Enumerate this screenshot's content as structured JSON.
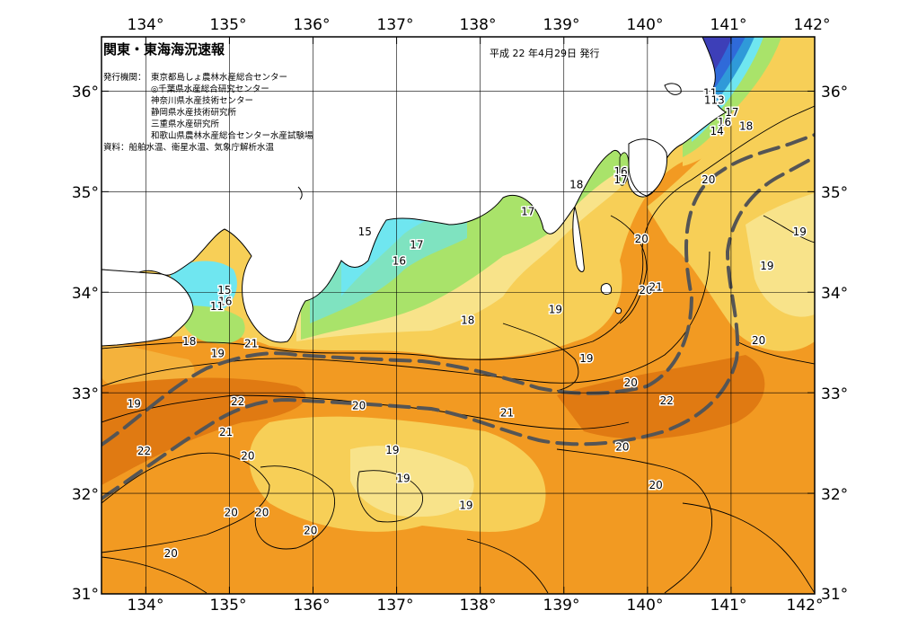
{
  "title": "関東・東海海況速報",
  "issue_date": "平成 22 年4月29日 発行",
  "organizations_label": "発行機関：",
  "organizations": [
    "東京都島しょ農林水産総合センター",
    "◎千葉県水産総合研究センター",
    "神奈川県水産技術センター",
    "静岡県水産技術研究所",
    "三重県水産研究所",
    "和歌山県農林水産総合センター水産試験場"
  ],
  "source_note": "資料：船舶水温、衛星水温、気象庁解析水温",
  "lon_ticks": [
    "134°",
    "135°",
    "136°",
    "137°",
    "138°",
    "139°",
    "140°",
    "141°",
    "142°"
  ],
  "lat_ticks": [
    "36°",
    "35°",
    "34°",
    "33°",
    "32°",
    "31°"
  ],
  "temperature_labels": [
    {
      "text": "11",
      "lon": 140.75,
      "lat": 35.98
    },
    {
      "text": "113",
      "lon": 140.8,
      "lat": 35.91
    },
    {
      "text": "17",
      "lon": 141.01,
      "lat": 35.79
    },
    {
      "text": "16",
      "lon": 140.92,
      "lat": 35.69
    },
    {
      "text": "14",
      "lon": 140.83,
      "lat": 35.6
    },
    {
      "text": "18",
      "lon": 141.18,
      "lat": 35.65
    },
    {
      "text": "16",
      "lon": 139.68,
      "lat": 35.2
    },
    {
      "text": "17",
      "lon": 139.68,
      "lat": 35.12
    },
    {
      "text": "18",
      "lon": 139.15,
      "lat": 35.07
    },
    {
      "text": "20",
      "lon": 140.73,
      "lat": 35.12
    },
    {
      "text": "17",
      "lon": 138.57,
      "lat": 34.8
    },
    {
      "text": "15",
      "lon": 136.62,
      "lat": 34.6
    },
    {
      "text": "17",
      "lon": 137.24,
      "lat": 34.47
    },
    {
      "text": "16",
      "lon": 137.03,
      "lat": 34.31
    },
    {
      "text": "20",
      "lon": 139.93,
      "lat": 34.53
    },
    {
      "text": "19",
      "lon": 141.82,
      "lat": 34.6
    },
    {
      "text": "19",
      "lon": 141.43,
      "lat": 34.26
    },
    {
      "text": "15",
      "lon": 134.94,
      "lat": 34.02
    },
    {
      "text": "16",
      "lon": 134.95,
      "lat": 33.91
    },
    {
      "text": "11",
      "lon": 134.85,
      "lat": 33.86
    },
    {
      "text": "20",
      "lon": 139.98,
      "lat": 34.02
    },
    {
      "text": "21",
      "lon": 140.1,
      "lat": 34.05
    },
    {
      "text": "19",
      "lon": 138.9,
      "lat": 33.83
    },
    {
      "text": "18",
      "lon": 137.85,
      "lat": 33.72
    },
    {
      "text": "20",
      "lon": 141.33,
      "lat": 33.52
    },
    {
      "text": "18",
      "lon": 134.52,
      "lat": 33.51
    },
    {
      "text": "21",
      "lon": 135.26,
      "lat": 33.49
    },
    {
      "text": "19",
      "lon": 134.86,
      "lat": 33.39
    },
    {
      "text": "19",
      "lon": 139.27,
      "lat": 33.34
    },
    {
      "text": "20",
      "lon": 139.8,
      "lat": 33.1
    },
    {
      "text": "19",
      "lon": 133.86,
      "lat": 32.89
    },
    {
      "text": "22",
      "lon": 135.1,
      "lat": 32.91
    },
    {
      "text": "20",
      "lon": 136.55,
      "lat": 32.87
    },
    {
      "text": "21",
      "lon": 138.32,
      "lat": 32.8
    },
    {
      "text": "22",
      "lon": 140.23,
      "lat": 32.92
    },
    {
      "text": "21",
      "lon": 134.96,
      "lat": 32.61
    },
    {
      "text": "22",
      "lon": 133.98,
      "lat": 32.42
    },
    {
      "text": "20",
      "lon": 135.22,
      "lat": 32.37
    },
    {
      "text": "19",
      "lon": 136.95,
      "lat": 32.43
    },
    {
      "text": "20",
      "lon": 139.7,
      "lat": 32.46
    },
    {
      "text": "19",
      "lon": 137.08,
      "lat": 32.15
    },
    {
      "text": "20",
      "lon": 140.1,
      "lat": 32.08
    },
    {
      "text": "19",
      "lon": 137.83,
      "lat": 31.88
    },
    {
      "text": "20",
      "lon": 135.02,
      "lat": 31.81
    },
    {
      "text": "20",
      "lon": 135.39,
      "lat": 31.81
    },
    {
      "text": "20",
      "lon": 135.97,
      "lat": 31.63
    },
    {
      "text": "20",
      "lon": 134.3,
      "lat": 31.4
    }
  ],
  "colors": {
    "ocean_orange": "#f29a22",
    "ocean_deep": "#e07a12",
    "ocean_yellow": "#f7cf57",
    "ocean_light": "#f8e38a",
    "green": "#a9e36a",
    "cyan": "#6fe6f0",
    "blue": "#2f6ad9",
    "land": "#ffffff",
    "kuroshio_axis": "#555555"
  }
}
